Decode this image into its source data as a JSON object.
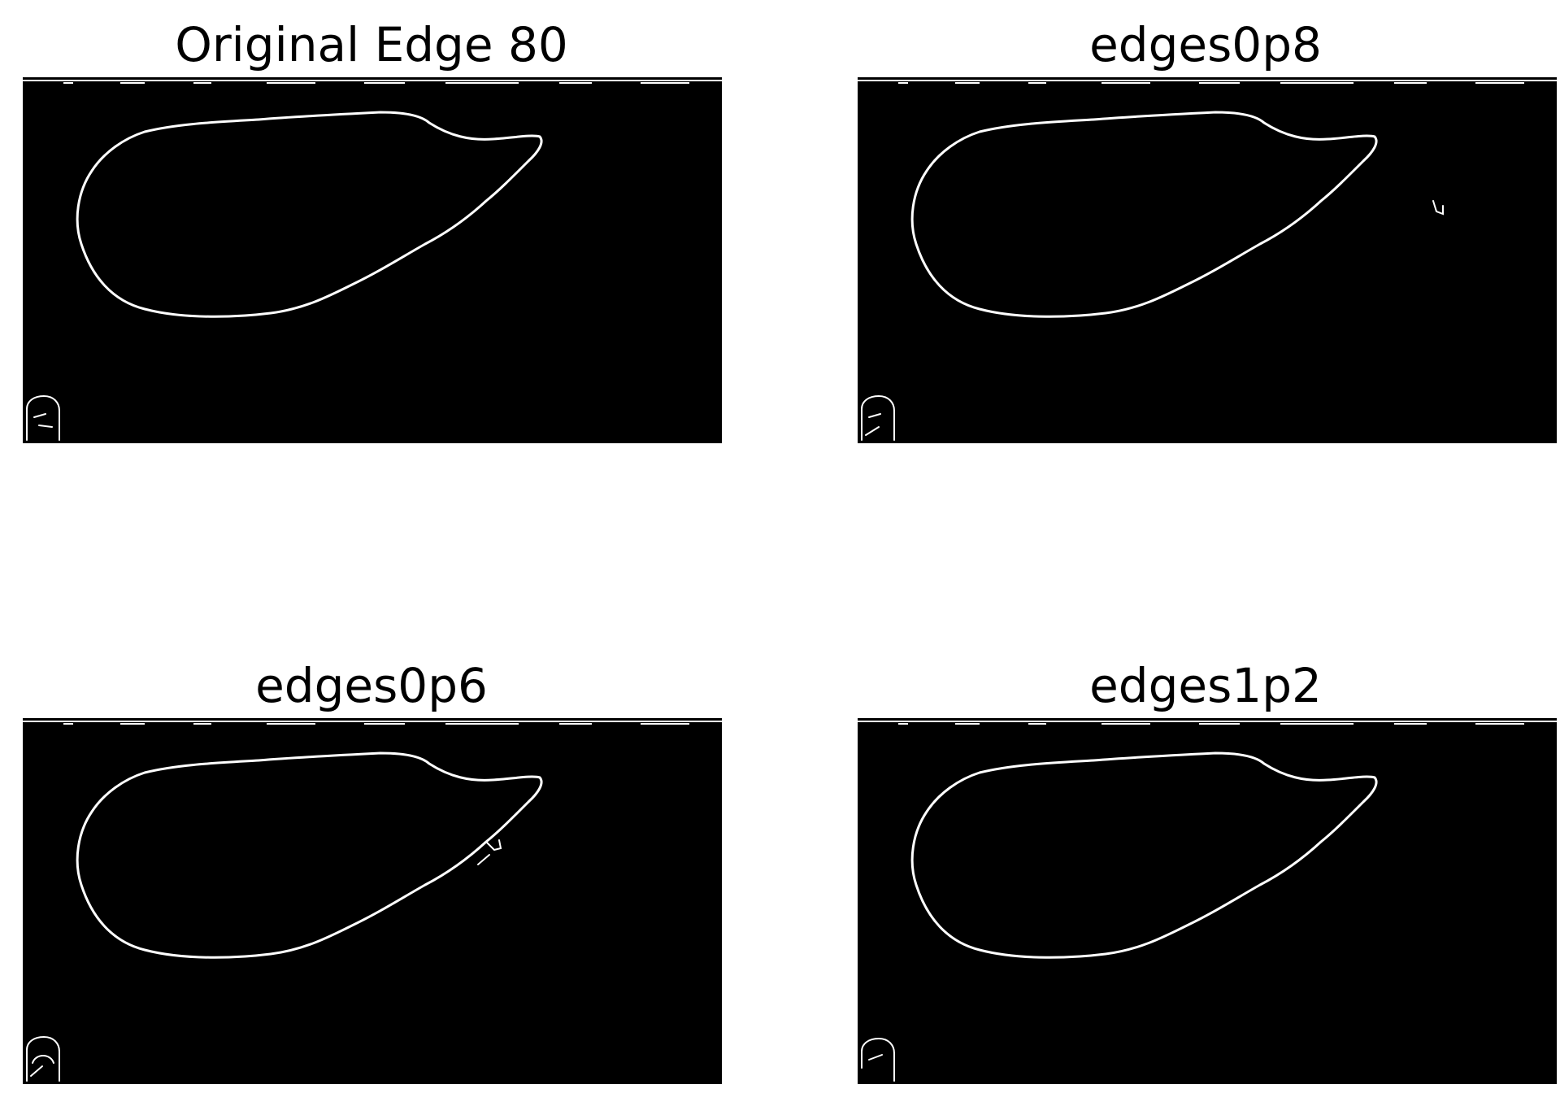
{
  "figure": {
    "panels": [
      {
        "id": "tl",
        "title": "Original Edge 80"
      },
      {
        "id": "tr",
        "title": "edges0p8"
      },
      {
        "id": "bl",
        "title": "edges0p6"
      },
      {
        "id": "br",
        "title": "edges1p2"
      }
    ],
    "colors": {
      "background": "#000000",
      "edge": "#ffffff"
    }
  }
}
